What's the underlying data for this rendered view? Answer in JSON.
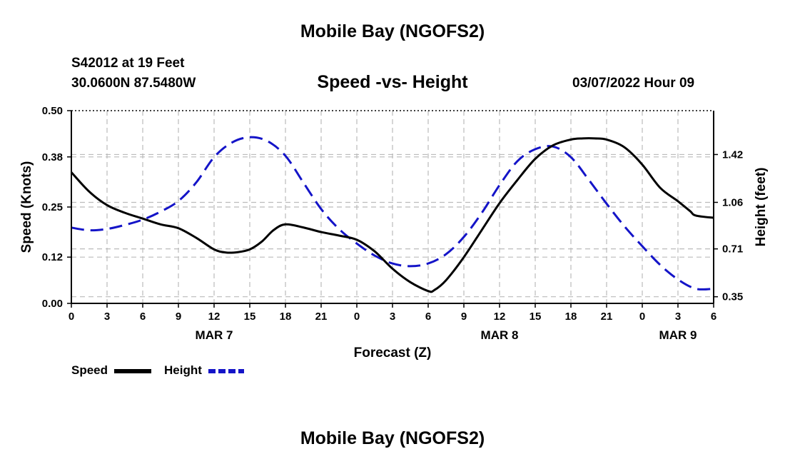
{
  "title": "Mobile Bay (NGOFS2)",
  "bottom_title": "Mobile Bay (NGOFS2)",
  "station": "S42012 at 19 Feet",
  "coords": "30.0600N  87.5480W",
  "subtitle": "Speed -vs- Height",
  "datetime": "03/07/2022 Hour 09",
  "colors": {
    "speed": "#000000",
    "height": "#1414c8",
    "grid": "#bbbbbb"
  },
  "chart_data": {
    "type": "line",
    "title": "Speed -vs- Height",
    "xlabel": "Forecast (Z)",
    "ylabel": "Speed (Knots)",
    "y2label": "Height (feet)",
    "x_range_hours": [
      0,
      54
    ],
    "ylim": [
      0,
      0.5
    ],
    "y2lim": [
      0.3,
      1.75
    ],
    "x_ticks": [
      "0",
      "3",
      "6",
      "9",
      "12",
      "15",
      "18",
      "21",
      "0",
      "3",
      "6",
      "9",
      "12",
      "15",
      "18",
      "21",
      "0",
      "3",
      "6"
    ],
    "y_ticks": [
      "0.50",
      "0.38",
      "0.25",
      "0.12",
      "0.00"
    ],
    "y_tick_values": [
      0.5,
      0.38,
      0.25,
      0.12,
      0.0
    ],
    "y2_ticks": [
      "1.42",
      "1.06",
      "0.71",
      "0.35"
    ],
    "y2_tick_values": [
      1.42,
      1.06,
      0.71,
      0.35
    ],
    "date_labels": [
      {
        "label": "MAR 7",
        "hour": 12
      },
      {
        "label": "MAR 8",
        "hour": 36
      },
      {
        "label": "MAR 9",
        "hour": 51
      }
    ],
    "grid": true,
    "legend": "bottom-left",
    "series": [
      {
        "name": "Speed",
        "axis": "left",
        "style": "solid",
        "x": [
          0,
          1.5,
          3,
          4.5,
          6,
          7.5,
          9,
          10.5,
          12,
          13,
          14,
          15,
          16,
          17,
          18,
          19.5,
          21,
          22.5,
          24,
          25.5,
          27,
          28.5,
          30,
          30.5,
          31.5,
          33,
          34.5,
          36,
          37.5,
          39,
          40.5,
          42,
          43,
          44,
          45,
          46.5,
          48,
          49.5,
          51,
          52,
          52.5,
          54
        ],
        "values": [
          0.34,
          0.29,
          0.255,
          0.235,
          0.22,
          0.205,
          0.195,
          0.17,
          0.14,
          0.132,
          0.133,
          0.14,
          0.16,
          0.19,
          0.205,
          0.197,
          0.185,
          0.176,
          0.165,
          0.135,
          0.09,
          0.055,
          0.032,
          0.034,
          0.06,
          0.12,
          0.19,
          0.26,
          0.32,
          0.375,
          0.41,
          0.425,
          0.428,
          0.428,
          0.425,
          0.405,
          0.36,
          0.3,
          0.265,
          0.24,
          0.228,
          0.222
        ]
      },
      {
        "name": "Height",
        "axis": "right",
        "style": "dashed",
        "x": [
          0,
          1.5,
          3,
          4.5,
          6,
          7.5,
          9,
          10.5,
          12,
          13.5,
          15,
          16.5,
          18,
          19.5,
          21,
          22.5,
          24,
          25.5,
          27,
          28.5,
          30,
          31.5,
          33,
          34.5,
          36,
          37.5,
          39,
          40.5,
          42,
          43.5,
          45,
          46.5,
          48,
          49.5,
          51,
          52.5,
          54
        ],
        "values": [
          0.87,
          0.85,
          0.86,
          0.89,
          0.93,
          0.99,
          1.07,
          1.21,
          1.4,
          1.51,
          1.55,
          1.52,
          1.41,
          1.21,
          1.01,
          0.86,
          0.75,
          0.66,
          0.6,
          0.58,
          0.6,
          0.67,
          0.8,
          0.98,
          1.19,
          1.37,
          1.46,
          1.48,
          1.4,
          1.23,
          1.05,
          0.88,
          0.73,
          0.59,
          0.48,
          0.41,
          0.41
        ]
      }
    ]
  }
}
